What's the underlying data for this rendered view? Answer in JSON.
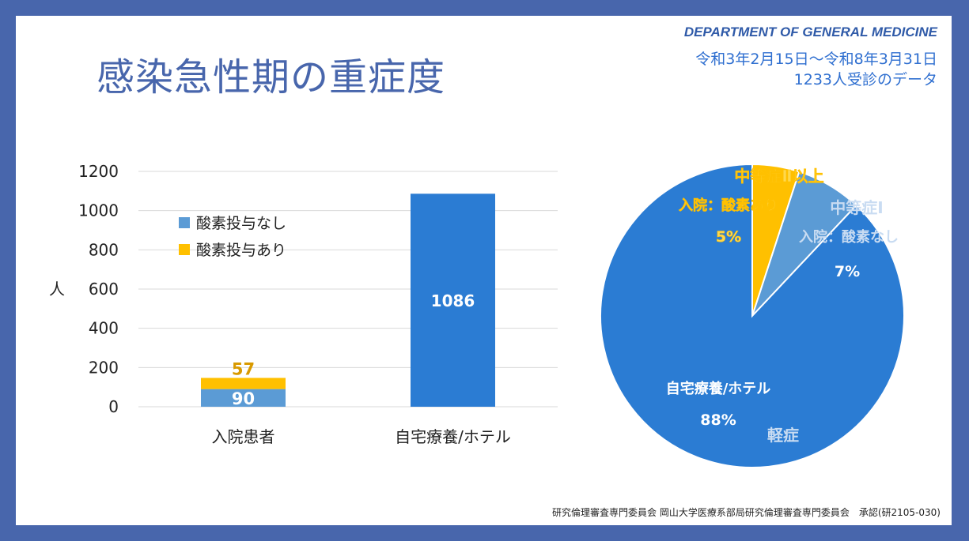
{
  "header": {
    "title": "感染急性期の重症度",
    "department": "DEPARTMENT OF GENERAL MEDICINE",
    "period": "令和3年2月15日～令和8年3月31日",
    "patients": "1233人受診のデータ"
  },
  "footer": {
    "text": "研究倫理審査専門委員会 岡山大学医療系部局研究倫理審査専門委員会　承認(研2105-030)"
  },
  "colors": {
    "frame": "#4866ac",
    "no_oxygen": "#5b9bd5",
    "oxygen": "#ffc000",
    "home": "#2b7cd3"
  },
  "chart_data": [
    {
      "type": "bar",
      "stacked": true,
      "categories": [
        "入院患者",
        "自宅療養/ホテル"
      ],
      "series": [
        {
          "name": "酸素投与なし",
          "values": [
            90,
            1086
          ],
          "color": "#5b9bd5"
        },
        {
          "name": "酸素投与あり",
          "values": [
            57,
            0
          ],
          "color": "#ffc000"
        }
      ],
      "data_labels": [
        [
          "90",
          "1086"
        ],
        [
          "57",
          ""
        ]
      ],
      "ylabel": "人",
      "ylim": [
        0,
        1200
      ],
      "yticks": [
        0,
        200,
        400,
        600,
        800,
        1000,
        1200
      ],
      "grid": true,
      "legend": "top-left"
    },
    {
      "type": "pie",
      "slices": [
        {
          "label": "中等症Ⅱ以上",
          "sublabel": "入院：酸素あり",
          "pct_label": "5%",
          "value": 5,
          "color": "#ffc000",
          "text_color": "#ffd84d"
        },
        {
          "label": "中等症Ⅰ",
          "sublabel": "入院：酸素なし",
          "pct_label": "7%",
          "value": 7,
          "color": "#5b9bd5",
          "text_color": "#c9dcf2"
        },
        {
          "label": "軽症",
          "sublabel": "自宅療養/ホテル",
          "pct_label": "88%",
          "value": 88,
          "color": "#2b7cd3",
          "text_color": "#c9dcf2"
        }
      ]
    }
  ]
}
